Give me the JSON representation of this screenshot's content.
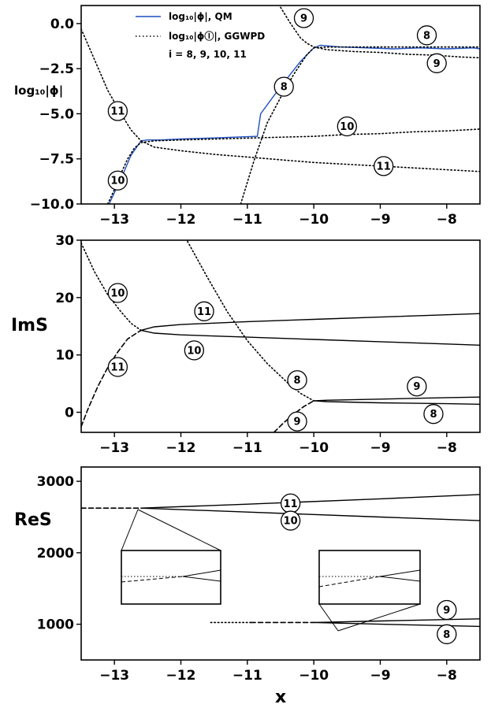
{
  "chart_data": [
    {
      "type": "line",
      "ylabel": "log₁₀|ϕ|",
      "xlim": [
        -13.5,
        -7.5
      ],
      "ylim": [
        -10.0,
        1.0
      ],
      "yticks": [
        "0.0",
        "−2.5",
        "−5.0",
        "−7.5",
        "−10.0"
      ],
      "ytick_values": [
        0.0,
        -2.5,
        -5.0,
        -7.5,
        -10.0
      ],
      "xticks": [
        "−13",
        "−12",
        "−11",
        "−10",
        "−9",
        "−8"
      ],
      "xtick_values": [
        -13,
        -12,
        -11,
        -10,
        -9,
        -8
      ],
      "legend": {
        "position": "top-center",
        "entries": [
          {
            "label": "log₁₀|ϕ|, QM",
            "style": "solid",
            "color": "#1f4fbf"
          },
          {
            "label": "log₁₀|ϕⒾ|, GGWPD",
            "style": "dotted",
            "color": "#000000"
          }
        ],
        "note": "i = 8, 9, 10, 11"
      },
      "series": [
        {
          "name": "QM",
          "color": "#1f4fbf",
          "style": "solid",
          "x": [
            -13.08,
            -12.9,
            -12.75,
            -12.6,
            -12.5,
            -12.3,
            -12.0,
            -11.6,
            -11.2,
            -10.85,
            -10.8,
            -10.5,
            -10.2,
            -10.0,
            -9.9,
            -9.6,
            -9.2,
            -8.8,
            -8.4,
            -8.0,
            -7.6,
            -7.5
          ],
          "y": [
            -10.0,
            -8.6,
            -7.3,
            -6.5,
            -6.45,
            -6.45,
            -6.4,
            -6.35,
            -6.3,
            -6.25,
            -5.0,
            -3.5,
            -2.1,
            -1.35,
            -1.2,
            -1.3,
            -1.35,
            -1.4,
            -1.35,
            -1.4,
            -1.35,
            -1.4
          ]
        },
        {
          "name": "8",
          "color": "#000000",
          "style": "dotted",
          "x": [
            -11.1,
            -10.9,
            -10.7,
            -10.5,
            -10.3,
            -10.1,
            -10.0,
            -9.8,
            -9.4,
            -9.0,
            -8.6,
            -8.2,
            -7.8,
            -7.5
          ],
          "y": [
            -10.0,
            -7.6,
            -5.5,
            -4.1,
            -2.8,
            -1.7,
            -1.35,
            -1.3,
            -1.3,
            -1.3,
            -1.3,
            -1.3,
            -1.3,
            -1.3
          ]
        },
        {
          "name": "9",
          "color": "#000000",
          "style": "dotted",
          "x": [
            -10.5,
            -10.35,
            -10.2,
            -10.1,
            -10.0,
            -9.8,
            -9.4,
            -9.0,
            -8.6,
            -8.2,
            -7.8,
            -7.5
          ],
          "y": [
            0.9,
            0.0,
            -0.8,
            -1.1,
            -1.3,
            -1.45,
            -1.55,
            -1.6,
            -1.7,
            -1.75,
            -1.85,
            -1.9
          ]
        },
        {
          "name": "10",
          "color": "#000000",
          "style": "dotted",
          "x": [
            -13.1,
            -13.0,
            -12.9,
            -12.8,
            -12.7,
            -12.6,
            -12.4,
            -12.0,
            -11.5,
            -11.0,
            -10.5,
            -10.0,
            -9.5,
            -9.0,
            -8.5,
            -8.0,
            -7.5
          ],
          "y": [
            -10.0,
            -9.2,
            -8.3,
            -7.5,
            -6.9,
            -6.6,
            -6.5,
            -6.45,
            -6.4,
            -6.35,
            -6.3,
            -6.25,
            -6.15,
            -6.1,
            -6.0,
            -5.95,
            -5.85
          ]
        },
        {
          "name": "11",
          "color": "#000000",
          "style": "dotted",
          "x": [
            -13.5,
            -13.3,
            -13.1,
            -12.9,
            -12.75,
            -12.6,
            -12.4,
            -12.0,
            -11.5,
            -11.0,
            -10.5,
            -10.0,
            -9.5,
            -9.0,
            -8.5,
            -8.0,
            -7.5
          ],
          "y": [
            -0.3,
            -2.0,
            -3.7,
            -5.0,
            -5.9,
            -6.5,
            -6.85,
            -7.05,
            -7.25,
            -7.4,
            -7.55,
            -7.7,
            -7.8,
            -7.9,
            -8.0,
            -8.1,
            -8.2
          ]
        }
      ],
      "annotations": [
        {
          "text": "8",
          "x": -8.3,
          "y": -0.65
        },
        {
          "text": "9",
          "x": -10.15,
          "y": 0.3
        },
        {
          "text": "9",
          "x": -8.15,
          "y": -2.2
        },
        {
          "text": "8",
          "x": -10.45,
          "y": -3.5
        },
        {
          "text": "10",
          "x": -9.5,
          "y": -5.7
        },
        {
          "text": "11",
          "x": -12.95,
          "y": -4.85
        },
        {
          "text": "10",
          "x": -12.95,
          "y": -8.7
        },
        {
          "text": "11",
          "x": -8.95,
          "y": -7.9
        }
      ]
    },
    {
      "type": "line",
      "ylabel": "ImS",
      "xlim": [
        -13.5,
        -7.5
      ],
      "ylim": [
        -3.5,
        30.0
      ],
      "yticks": [
        "30",
        "20",
        "10",
        "0"
      ],
      "ytick_values": [
        30,
        20,
        10,
        0
      ],
      "xticks": [
        "−13",
        "−12",
        "−11",
        "−10",
        "−9",
        "−8"
      ],
      "xtick_values": [
        -13,
        -12,
        -11,
        -10,
        -9,
        -8
      ],
      "series": [
        {
          "name": "10 upper",
          "style": "dotted",
          "x": [
            -13.5,
            -13.3,
            -13.1,
            -12.9,
            -12.75,
            -12.6
          ],
          "y": [
            29.5,
            24.5,
            20.5,
            17.5,
            15.5,
            14.3
          ]
        },
        {
          "name": "11 lower",
          "style": "dashed",
          "x": [
            -13.5,
            -13.4,
            -13.25,
            -13.1,
            -12.95,
            -12.8,
            -12.6
          ],
          "y": [
            -2.5,
            0.5,
            4.5,
            7.8,
            10.5,
            12.8,
            14.3
          ]
        },
        {
          "name": "11 branch",
          "style": "solid",
          "x": [
            -12.6,
            -12.4,
            -12.0,
            -11.0,
            -10.0,
            -9.0,
            -8.0,
            -7.5
          ],
          "y": [
            14.3,
            14.9,
            15.3,
            15.8,
            16.2,
            16.6,
            17.0,
            17.2
          ]
        },
        {
          "name": "10 branch",
          "style": "solid",
          "x": [
            -12.6,
            -12.4,
            -12.0,
            -11.0,
            -10.0,
            -9.0,
            -8.0,
            -7.5
          ],
          "y": [
            14.3,
            13.8,
            13.5,
            13.1,
            12.7,
            12.3,
            11.9,
            11.7
          ]
        },
        {
          "name": "8 upper",
          "style": "dotted",
          "x": [
            -11.9,
            -11.6,
            -11.3,
            -11.0,
            -10.7,
            -10.4,
            -10.2,
            -10.0
          ],
          "y": [
            29.8,
            23.5,
            17.5,
            12.5,
            8.5,
            5.2,
            3.3,
            2.0
          ]
        },
        {
          "name": "9 lower",
          "style": "dashed",
          "x": [
            -10.6,
            -10.45,
            -10.3,
            -10.15,
            -10.0
          ],
          "y": [
            -3.5,
            -1.8,
            -0.3,
            1.0,
            2.0
          ]
        },
        {
          "name": "9 branch",
          "style": "solid",
          "x": [
            -10.0,
            -9.8,
            -9.0,
            -8.0,
            -7.5
          ],
          "y": [
            2.0,
            2.1,
            2.3,
            2.55,
            2.65
          ]
        },
        {
          "name": "8 branch",
          "style": "solid",
          "x": [
            -10.0,
            -9.8,
            -9.0,
            -8.0,
            -7.5
          ],
          "y": [
            2.0,
            1.85,
            1.65,
            1.5,
            1.4
          ]
        }
      ],
      "annotations": [
        {
          "text": "10",
          "x": -12.95,
          "y": 20.8
        },
        {
          "text": "11",
          "x": -11.65,
          "y": 17.6
        },
        {
          "text": "10",
          "x": -11.8,
          "y": 10.8
        },
        {
          "text": "11",
          "x": -12.95,
          "y": 7.9
        },
        {
          "text": "8",
          "x": -10.25,
          "y": 5.6
        },
        {
          "text": "9",
          "x": -8.45,
          "y": 4.5
        },
        {
          "text": "9",
          "x": -10.25,
          "y": -1.6
        },
        {
          "text": "8",
          "x": -8.2,
          "y": -0.3
        }
      ]
    },
    {
      "type": "line",
      "ylabel": "ReS",
      "xlabel": "x",
      "xlim": [
        -13.5,
        -7.5
      ],
      "ylim": [
        500,
        3200
      ],
      "yticks": [
        "3000",
        "2000",
        "1000"
      ],
      "ytick_values": [
        3000,
        2000,
        1000
      ],
      "xticks": [
        "−13",
        "−12",
        "−11",
        "−10",
        "−9",
        "−8"
      ],
      "xtick_values": [
        -13,
        -12,
        -11,
        -10,
        -9,
        -8
      ],
      "series": [
        {
          "name": "dashed lead (10/11)",
          "style": "dashed",
          "x": [
            -13.5,
            -12.6
          ],
          "y": [
            2625,
            2625
          ]
        },
        {
          "name": "11",
          "style": "solid",
          "x": [
            -12.6,
            -11.0,
            -9.0,
            -7.5
          ],
          "y": [
            2625,
            2680,
            2755,
            2815
          ]
        },
        {
          "name": "10",
          "style": "solid",
          "x": [
            -12.6,
            -11.0,
            -9.0,
            -7.5
          ],
          "y": [
            2625,
            2570,
            2500,
            2450
          ]
        },
        {
          "name": "dotted lead (8/9)",
          "style": "dotted",
          "x": [
            -11.55,
            -10.95
          ],
          "y": [
            1025,
            1025
          ]
        },
        {
          "name": "dashed lead (8/9)",
          "style": "dashed",
          "x": [
            -10.95,
            -10.0
          ],
          "y": [
            1025,
            1025
          ]
        },
        {
          "name": "9",
          "style": "solid",
          "x": [
            -10.0,
            -9.0,
            -8.0,
            -7.5
          ],
          "y": [
            1025,
            1045,
            1065,
            1075
          ]
        },
        {
          "name": "8",
          "style": "solid",
          "x": [
            -10.0,
            -9.0,
            -8.0,
            -7.5
          ],
          "y": [
            1025,
            1000,
            980,
            970
          ]
        }
      ],
      "annotations": [
        {
          "text": "11",
          "x": -10.35,
          "y": 2690
        },
        {
          "text": "10",
          "x": -10.35,
          "y": 2450
        },
        {
          "text": "9",
          "x": -8.0,
          "y": 1200
        },
        {
          "text": "8",
          "x": -8.0,
          "y": 860
        }
      ],
      "insets": [
        {
          "anchor": "branch point 10/11"
        },
        {
          "anchor": "branch point 8/9"
        }
      ]
    }
  ]
}
